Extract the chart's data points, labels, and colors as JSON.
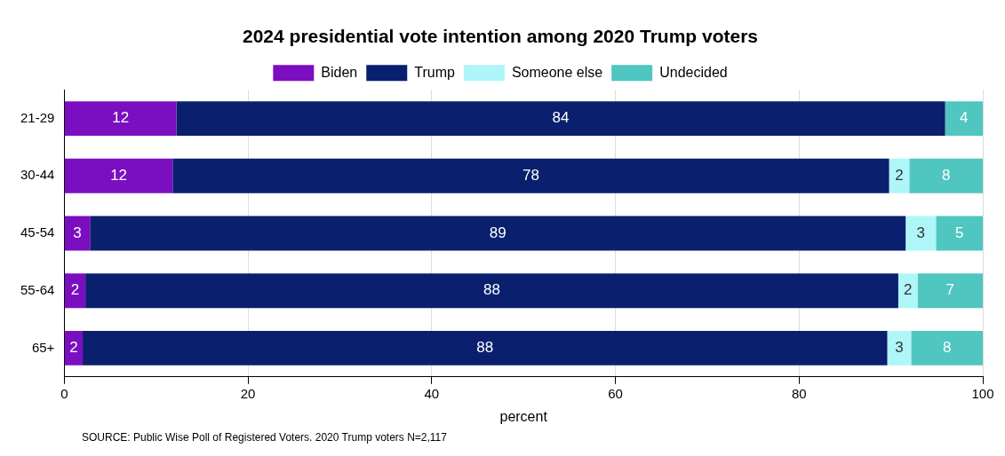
{
  "chart_data": {
    "type": "bar",
    "orientation": "horizontal",
    "stacked": true,
    "title": "2024 presidential vote intention among 2020 Trump voters",
    "xlabel": "percent",
    "categories": [
      "21-29",
      "30-44",
      "45-54",
      "55-64",
      "65+"
    ],
    "series": [
      {
        "name": "Biden",
        "color": "#7b0ec0",
        "values": [
          12.2,
          11.8,
          2.8,
          2.3,
          2.0
        ],
        "value_labels": [
          "12",
          "12",
          "3",
          "2",
          "2"
        ]
      },
      {
        "name": "Trump",
        "color": "#0a1f6e",
        "values": [
          83.7,
          78.0,
          88.8,
          88.5,
          87.6
        ],
        "value_labels": [
          "84",
          "78",
          "89",
          "88",
          "88"
        ]
      },
      {
        "name": "Someone else",
        "color": "#aef6f8",
        "values": [
          null,
          2.2,
          3.3,
          2.1,
          2.6
        ],
        "value_labels": [
          null,
          "2",
          "3",
          "2",
          "3"
        ]
      },
      {
        "name": "Undecided",
        "color": "#4fc6c0",
        "values": [
          4.1,
          8.0,
          5.1,
          7.1,
          7.8
        ],
        "value_labels": [
          "4",
          "8",
          "5",
          "7",
          "8"
        ]
      }
    ],
    "xlim": [
      0,
      100
    ],
    "xticks": [
      0,
      20,
      40,
      60,
      80,
      100
    ],
    "grid": "x",
    "legend": "top",
    "annotations": [
      "SOURCE: Public Wise Poll of Registered Voters. 2020 Trump voters N=2,117"
    ]
  }
}
